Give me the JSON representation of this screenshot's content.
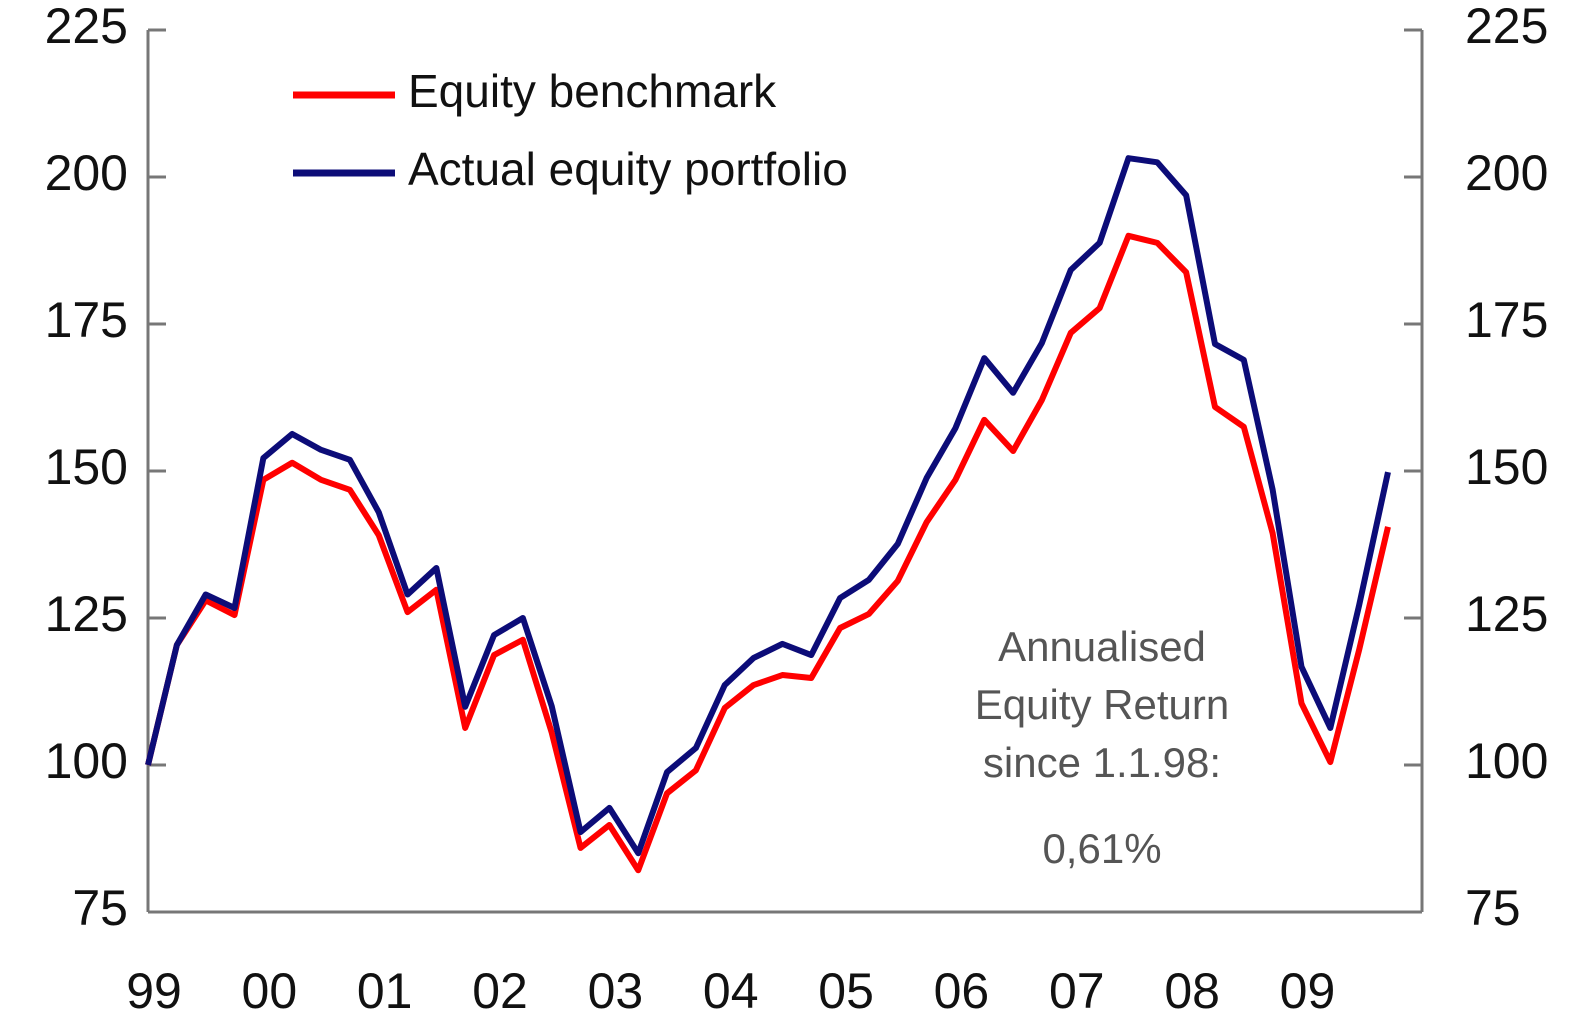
{
  "chart_data": {
    "type": "line",
    "categories": [
      "99",
      null,
      null,
      null,
      "00",
      null,
      null,
      null,
      "01",
      null,
      null,
      null,
      "02",
      null,
      null,
      null,
      "03",
      null,
      null,
      null,
      "04",
      null,
      null,
      null,
      "05",
      null,
      null,
      null,
      "06",
      null,
      null,
      null,
      "07",
      null,
      null,
      null,
      "08",
      null,
      null,
      null,
      "09",
      null,
      null,
      null
    ],
    "series": [
      {
        "name": "Equity benchmark",
        "color": "#ff0000",
        "values": [
          100,
          120.4,
          128,
          125.5,
          148.5,
          151.4,
          148.5,
          146.8,
          139.1,
          126,
          129.8,
          106.3,
          118.7,
          121.3,
          105.5,
          85.9,
          89.8,
          82.1,
          95.2,
          99.1,
          109.7,
          113.6,
          115.3,
          114.8,
          123.3,
          125.7,
          131.3,
          141.3,
          148.5,
          158.7,
          153.4,
          162.1,
          173.5,
          177.7,
          190,
          188.8,
          183.8,
          160.9,
          157.5,
          139.4,
          110.5,
          100.5,
          119.6,
          140.5
        ]
      },
      {
        "name": "Actual equity portfolio",
        "color": "#0c0c78",
        "values": [
          100,
          120.4,
          129,
          126.7,
          152.2,
          156.3,
          153.6,
          151.9,
          143,
          129,
          133.5,
          109.9,
          122.1,
          125,
          110,
          88.6,
          92.7,
          85,
          98.8,
          102.9,
          113.6,
          118.2,
          120.6,
          118.7,
          128.4,
          131.5,
          137.6,
          148.8,
          157.3,
          169.2,
          163.3,
          171.8,
          184.2,
          188.8,
          203.2,
          202.5,
          196.9,
          171.6,
          168.9,
          146.8,
          116.7,
          106.3,
          127.2,
          149.8
        ]
      }
    ],
    "ylim": [
      75,
      225
    ],
    "yticks": [
      75,
      100,
      125,
      150,
      175,
      200,
      225
    ],
    "y2lim": [
      75,
      225
    ],
    "y2ticks": [
      75,
      100,
      125,
      150,
      175,
      200,
      225
    ],
    "annotations": [
      "Annualised",
      "Equity Return",
      "since 1.1.98:",
      "0,61%"
    ],
    "legend": "top-left"
  }
}
